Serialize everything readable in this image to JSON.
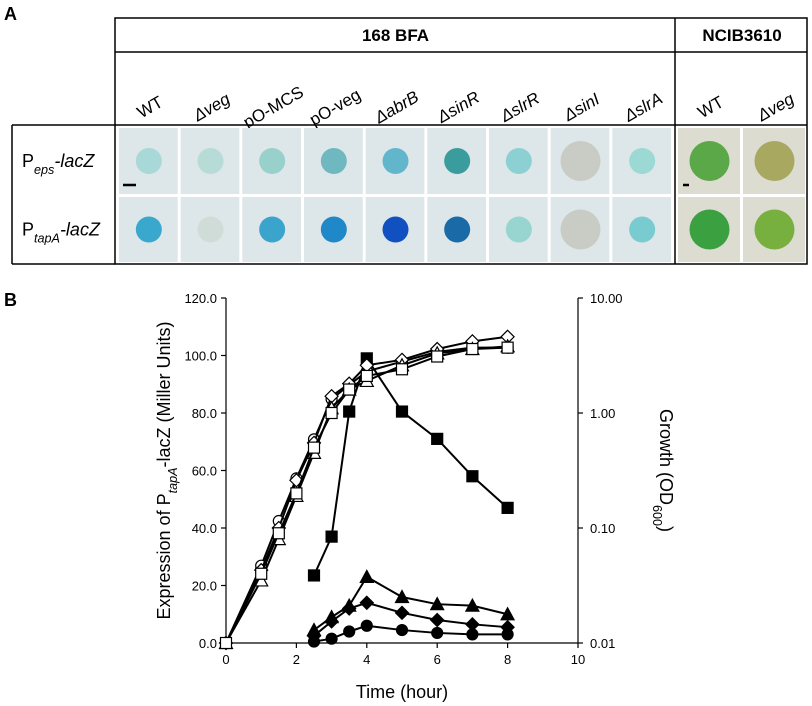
{
  "panel_a": {
    "label": "A",
    "groups": [
      {
        "title": "168 BFA",
        "count": 9
      },
      {
        "title": "NCIB3610",
        "count": 2
      }
    ],
    "columns": [
      "WT",
      "Δveg",
      "pO-MCS",
      "pO-veg",
      "ΔabrB",
      "ΔsinR",
      "ΔslrR",
      "ΔsinI",
      "ΔslrA",
      "WT",
      "Δveg"
    ],
    "rows": [
      {
        "prefix": "P",
        "sub": "eps",
        "suffix": "-lacZ",
        "colonies": [
          "#a8d8d8",
          "#b7dcd8",
          "#98d0cc",
          "#6fb8c0",
          "#62b6cc",
          "#3a9c9c",
          "#8cd0d4",
          "#c8ccc4",
          "#9cd8d4",
          "#5aa848",
          "#a8a860"
        ]
      },
      {
        "prefix": "P",
        "sub": "tapA",
        "suffix": "-lacZ",
        "colonies": [
          "#3aa8cc",
          "#d0dcd8",
          "#3aa4cc",
          "#1e88c8",
          "#1050c0",
          "#1a6aa8",
          "#98d4d0",
          "#c8ccc4",
          "#78ccd0",
          "#3aa040",
          "#78b040"
        ]
      }
    ]
  },
  "chart_data": {
    "type": "line",
    "label": "B",
    "x_label": "Time (hour)",
    "y_label": {
      "prefix": "Expression of P",
      "sub": "tapA",
      "suffix": "-lacZ (Miller Units)"
    },
    "y2_label": {
      "prefix": "Growth (OD",
      "sub": "600",
      "suffix": ")"
    },
    "xlim": [
      0,
      10
    ],
    "xticks": [
      0,
      2,
      4,
      6,
      8,
      10
    ],
    "ylim": [
      0,
      120
    ],
    "yticks": [
      {
        "value": 0,
        "label": "0.0"
      },
      {
        "value": 20,
        "label": "20.0"
      },
      {
        "value": 40,
        "label": "40.0"
      },
      {
        "value": 60,
        "label": "60.0"
      },
      {
        "value": 80,
        "label": "80.0"
      },
      {
        "value": 100,
        "label": "100.0"
      },
      {
        "value": 120,
        "label": "120.0"
      }
    ],
    "y2lim": [
      0.01,
      10
    ],
    "y2log": true,
    "y2ticks": [
      {
        "value": 0.01,
        "label": "0.01"
      },
      {
        "value": 0.1,
        "label": "0.10"
      },
      {
        "value": 1,
        "label": "1.00"
      },
      {
        "value": 10,
        "label": "10.00"
      }
    ],
    "grid": false,
    "series": [
      {
        "marker": "square",
        "filled": true,
        "color": "#000000",
        "x": [
          2.5,
          3,
          3.5,
          4,
          5,
          6,
          7,
          8
        ],
        "values": [
          23.5,
          37,
          80.5,
          99,
          80.5,
          71,
          58,
          47
        ]
      },
      {
        "marker": "triangle",
        "filled": true,
        "color": "#000000",
        "x": [
          2.5,
          3,
          3.5,
          4,
          5,
          6,
          7,
          8
        ],
        "values": [
          4.5,
          9,
          13,
          23,
          16,
          13.5,
          13,
          10
        ]
      },
      {
        "marker": "diamond",
        "filled": true,
        "color": "#000000",
        "x": [
          2.5,
          3,
          3.5,
          4,
          5,
          6,
          7,
          8
        ],
        "values": [
          2.5,
          7.5,
          12,
          14,
          10.5,
          8,
          6.5,
          5.5
        ]
      },
      {
        "marker": "circle",
        "filled": true,
        "color": "#000000",
        "x": [
          2.5,
          3,
          3.5,
          4,
          5,
          6,
          7,
          8
        ],
        "values": [
          0.5,
          1.5,
          4,
          6,
          4.5,
          3.5,
          3,
          3
        ]
      },
      {
        "marker": "circle",
        "filled": false,
        "color": "#000000",
        "axis": "y2",
        "x": [
          0,
          1,
          1.5,
          2,
          2.5,
          3,
          3.5,
          4,
          5,
          6,
          7,
          8
        ],
        "values": [
          0.01,
          0.047,
          0.115,
          0.27,
          0.59,
          1.32,
          1.75,
          2.3,
          2.8,
          3.4,
          3.7,
          3.7
        ]
      },
      {
        "marker": "diamond",
        "filled": false,
        "color": "#000000",
        "axis": "y2",
        "x": [
          0,
          1,
          1.5,
          2,
          2.5,
          3,
          3.5,
          4,
          5,
          6,
          7,
          8
        ],
        "values": [
          0.01,
          0.043,
          0.1,
          0.26,
          0.55,
          1.4,
          1.8,
          2.6,
          2.9,
          3.6,
          4.2,
          4.6
        ]
      },
      {
        "marker": "triangle",
        "filled": false,
        "color": "#000000",
        "axis": "y2",
        "x": [
          0,
          1,
          1.5,
          2,
          2.5,
          3,
          3.5,
          4,
          5,
          6,
          7,
          8
        ],
        "values": [
          0.01,
          0.035,
          0.08,
          0.19,
          0.45,
          1.1,
          1.6,
          1.9,
          2.6,
          3.3,
          3.6,
          3.8
        ]
      },
      {
        "marker": "square",
        "filled": false,
        "color": "#000000",
        "axis": "y2",
        "x": [
          0,
          1,
          1.5,
          2,
          2.5,
          3,
          3.5,
          4,
          5,
          6,
          7,
          8
        ],
        "values": [
          0.01,
          0.04,
          0.09,
          0.2,
          0.5,
          1.0,
          1.6,
          2.1,
          2.4,
          3.1,
          3.6,
          3.7
        ]
      }
    ]
  }
}
